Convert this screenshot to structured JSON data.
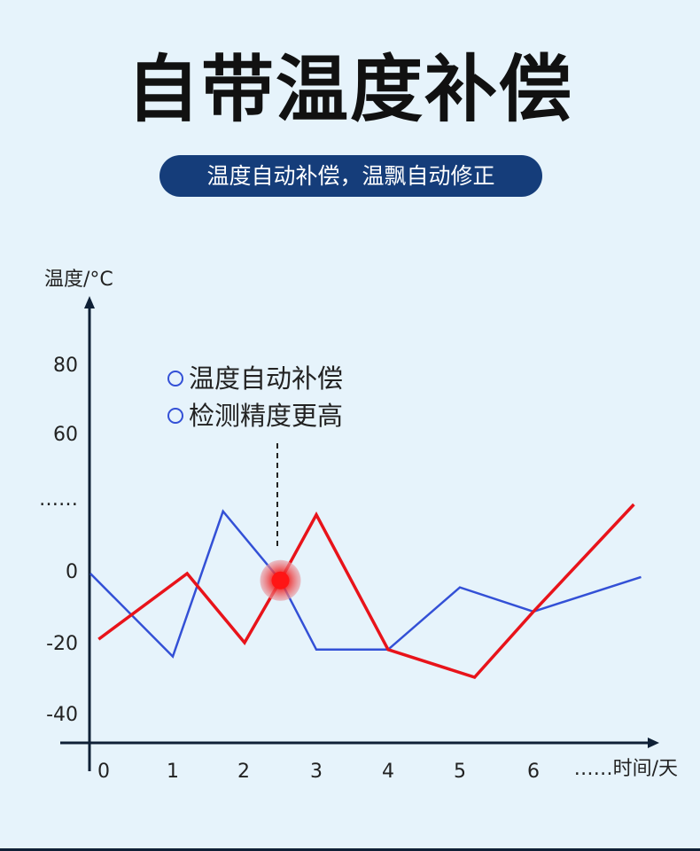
{
  "header": {
    "title": "自带温度补偿",
    "subtitle": "温度自动补偿，温飘自动修正"
  },
  "chart_data": {
    "type": "line",
    "ylabel": "温度/°C",
    "xlabel": "……时间/天",
    "x_ticks": [
      "0",
      "1",
      "2",
      "3",
      "4",
      "5",
      "6"
    ],
    "y_ticks": [
      "80",
      "60",
      "……",
      "0",
      "-20",
      "-40"
    ],
    "legend": [
      "温度自动补偿",
      "检测精度更高"
    ],
    "legend_position": "top-left",
    "colors": {
      "blue": "#3350d6",
      "red": "#e8131a",
      "axis": "#0f2036"
    },
    "series": [
      {
        "color": "blue",
        "x": [
          0,
          1,
          1.7,
          2.5,
          3,
          4,
          5,
          6,
          7.5
        ],
        "y": [
          0,
          -24,
          18,
          -2,
          -22,
          -22,
          -4,
          -11,
          -1
        ]
      },
      {
        "color": "red",
        "x": [
          0.1,
          1.2,
          2,
          2.5,
          3,
          4,
          5.2,
          6,
          7.4
        ],
        "y": [
          -19,
          0,
          -20,
          -2,
          17,
          -22,
          -30,
          -11,
          20
        ]
      }
    ],
    "highlight": {
      "x": 2.5,
      "y": -2
    }
  }
}
